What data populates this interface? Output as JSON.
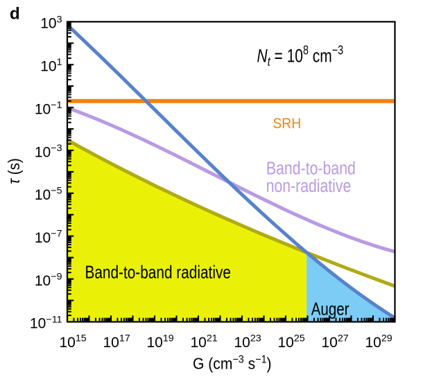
{
  "panel_label": "d",
  "colors": {
    "frame": "#000000",
    "srh_line": "#f08412",
    "auger_line": "#5882cc",
    "radiative_line": "#b0ab14",
    "nonradiative_line": "#b99ae4",
    "radiative_fill": "#eaf107",
    "auger_fill": "#7cccf5",
    "text": "#000000"
  },
  "chart_data": {
    "type": "line",
    "title": "",
    "xlabel": "G (cm⁻³ s⁻¹)",
    "ylabel": "τ (s)",
    "x_axis": {
      "scale": "log",
      "min_exp": 15,
      "max_exp": 30,
      "labeled_exps": [
        15,
        17,
        19,
        21,
        23,
        25,
        27,
        29
      ],
      "tick_labels": [
        "10¹⁵",
        "10¹⁷",
        "10¹⁹",
        "10²¹",
        "10²³",
        "10²⁵",
        "10²⁷",
        "10²⁹"
      ],
      "minor_ticks": "2-9 per decade"
    },
    "y_axis": {
      "scale": "log",
      "min_exp": -11,
      "max_exp": 3,
      "labeled_exps": [
        3,
        1,
        -1,
        -3,
        -5,
        -7,
        -9,
        -11
      ],
      "tick_labels": [
        "10³",
        "10¹",
        "10⁻¹",
        "10⁻³",
        "10⁻⁵",
        "10⁻⁷",
        "10⁻⁹",
        "10⁻¹¹"
      ],
      "minor_ticks": "2-9 per decade"
    },
    "annotation": {
      "text": "Nt = 10⁸ cm⁻³",
      "parts": [
        {
          "t": "N",
          "style": "italic"
        },
        {
          "t": "t",
          "pos": "sub",
          "style": "italic"
        },
        {
          "t": " = 10"
        },
        {
          "t": "8",
          "pos": "sup"
        },
        {
          "t": " cm"
        },
        {
          "t": "−3",
          "pos": "sup"
        }
      ]
    },
    "xlabel_parts": [
      {
        "t": "G (cm"
      },
      {
        "t": "−3",
        "pos": "sup"
      },
      {
        "t": " s"
      },
      {
        "t": "−1",
        "pos": "sup"
      },
      {
        "t": ")"
      }
    ],
    "ylabel_parts": [
      {
        "t": "τ",
        "style": "italic"
      },
      {
        "t": " (s)"
      }
    ],
    "series": [
      {
        "name": "SRH",
        "label": "SRH",
        "kind": "hline",
        "tau_s": 0.2,
        "log_tau": -0.7
      },
      {
        "name": "Auger",
        "label": "Auger",
        "kind": "curve",
        "points": [
          [
            15.0,
            2.853
          ],
          [
            15.5,
            2.373
          ],
          [
            16.0,
            1.888
          ],
          [
            16.5,
            1.398
          ],
          [
            17.0,
            0.904
          ],
          [
            17.5,
            0.406
          ],
          [
            18.0,
            -0.094
          ],
          [
            18.5,
            -0.596
          ],
          [
            19.0,
            -1.099
          ],
          [
            19.5,
            -1.602
          ],
          [
            20.0,
            -2.104
          ],
          [
            20.5,
            -2.606
          ],
          [
            21.0,
            -3.105
          ],
          [
            21.5,
            -3.601
          ],
          [
            22.0,
            -4.093
          ],
          [
            22.5,
            -4.581
          ],
          [
            23.0,
            -5.063
          ],
          [
            23.5,
            -5.539
          ],
          [
            24.0,
            -6.009
          ],
          [
            24.5,
            -6.471
          ],
          [
            25.0,
            -6.924
          ],
          [
            25.5,
            -7.368
          ],
          [
            26.0,
            -7.802
          ],
          [
            26.5,
            -8.225
          ],
          [
            27.0,
            -8.637
          ],
          [
            27.5,
            -9.036
          ],
          [
            28.0,
            -9.422
          ],
          [
            28.5,
            -9.795
          ],
          [
            29.0,
            -10.152
          ],
          [
            29.5,
            -10.494
          ],
          [
            30.0,
            -10.82
          ]
        ]
      },
      {
        "name": "Band-to-band radiative",
        "label": "Band-to-band radiative",
        "kind": "curve",
        "points": [
          [
            15.0,
            -2.517
          ],
          [
            15.5,
            -2.797
          ],
          [
            16.0,
            -3.073
          ],
          [
            16.5,
            -3.345
          ],
          [
            17.0,
            -3.612
          ],
          [
            17.5,
            -3.875
          ],
          [
            18.0,
            -4.133
          ],
          [
            18.5,
            -4.388
          ],
          [
            19.0,
            -4.639
          ],
          [
            19.5,
            -4.886
          ],
          [
            20.0,
            -5.129
          ],
          [
            20.5,
            -5.368
          ],
          [
            21.0,
            -5.604
          ],
          [
            21.5,
            -5.836
          ],
          [
            22.0,
            -6.065
          ],
          [
            22.5,
            -6.29
          ],
          [
            23.0,
            -6.512
          ],
          [
            23.5,
            -6.731
          ],
          [
            24.0,
            -6.947
          ],
          [
            24.5,
            -7.16
          ],
          [
            25.0,
            -7.37
          ],
          [
            25.5,
            -7.578
          ],
          [
            26.0,
            -7.782
          ],
          [
            26.5,
            -7.984
          ],
          [
            27.0,
            -8.184
          ],
          [
            27.5,
            -8.381
          ],
          [
            28.0,
            -8.576
          ],
          [
            28.5,
            -8.768
          ],
          [
            29.0,
            -8.958
          ],
          [
            29.5,
            -9.147
          ],
          [
            30.0,
            -9.333
          ]
        ]
      },
      {
        "name": "Band-to-band non-radiative",
        "label": "Band-to-band non-radiative",
        "kind": "curve",
        "points": [
          [
            15.0,
            -1.013
          ],
          [
            15.5,
            -1.2
          ],
          [
            16.0,
            -1.397
          ],
          [
            16.5,
            -1.604
          ],
          [
            17.0,
            -1.82
          ],
          [
            17.5,
            -2.044
          ],
          [
            18.0,
            -2.275
          ],
          [
            18.5,
            -2.512
          ],
          [
            19.0,
            -2.755
          ],
          [
            19.5,
            -3.003
          ],
          [
            20.0,
            -3.254
          ],
          [
            20.5,
            -3.508
          ],
          [
            21.0,
            -3.764
          ],
          [
            21.5,
            -4.021
          ],
          [
            22.0,
            -4.279
          ],
          [
            22.5,
            -4.536
          ],
          [
            23.0,
            -4.791
          ],
          [
            23.5,
            -5.044
          ],
          [
            24.0,
            -5.294
          ],
          [
            24.5,
            -5.54
          ],
          [
            25.0,
            -5.781
          ],
          [
            25.5,
            -6.016
          ],
          [
            26.0,
            -6.245
          ],
          [
            26.5,
            -6.466
          ],
          [
            27.0,
            -6.678
          ],
          [
            27.5,
            -6.882
          ],
          [
            28.0,
            -7.075
          ],
          [
            28.5,
            -7.257
          ],
          [
            29.0,
            -7.428
          ],
          [
            29.5,
            -7.585
          ],
          [
            30.0,
            -7.729
          ]
        ]
      }
    ],
    "regions": [
      {
        "name": "radiative-dominant",
        "label": "Band-to-band radiative",
        "bounded_by": "Band-to-band radiative curve, left of its crossing with Auger curve"
      },
      {
        "name": "auger-dominant",
        "label": "Auger",
        "bounded_by": "Auger curve, right of its crossing with radiative curve"
      }
    ],
    "labels": {
      "srh": "SRH",
      "nonradiative_line1": "Band-to-band",
      "nonradiative_line2": "non-radiative",
      "radiative": "Band-to-band radiative",
      "auger": "Auger"
    }
  }
}
